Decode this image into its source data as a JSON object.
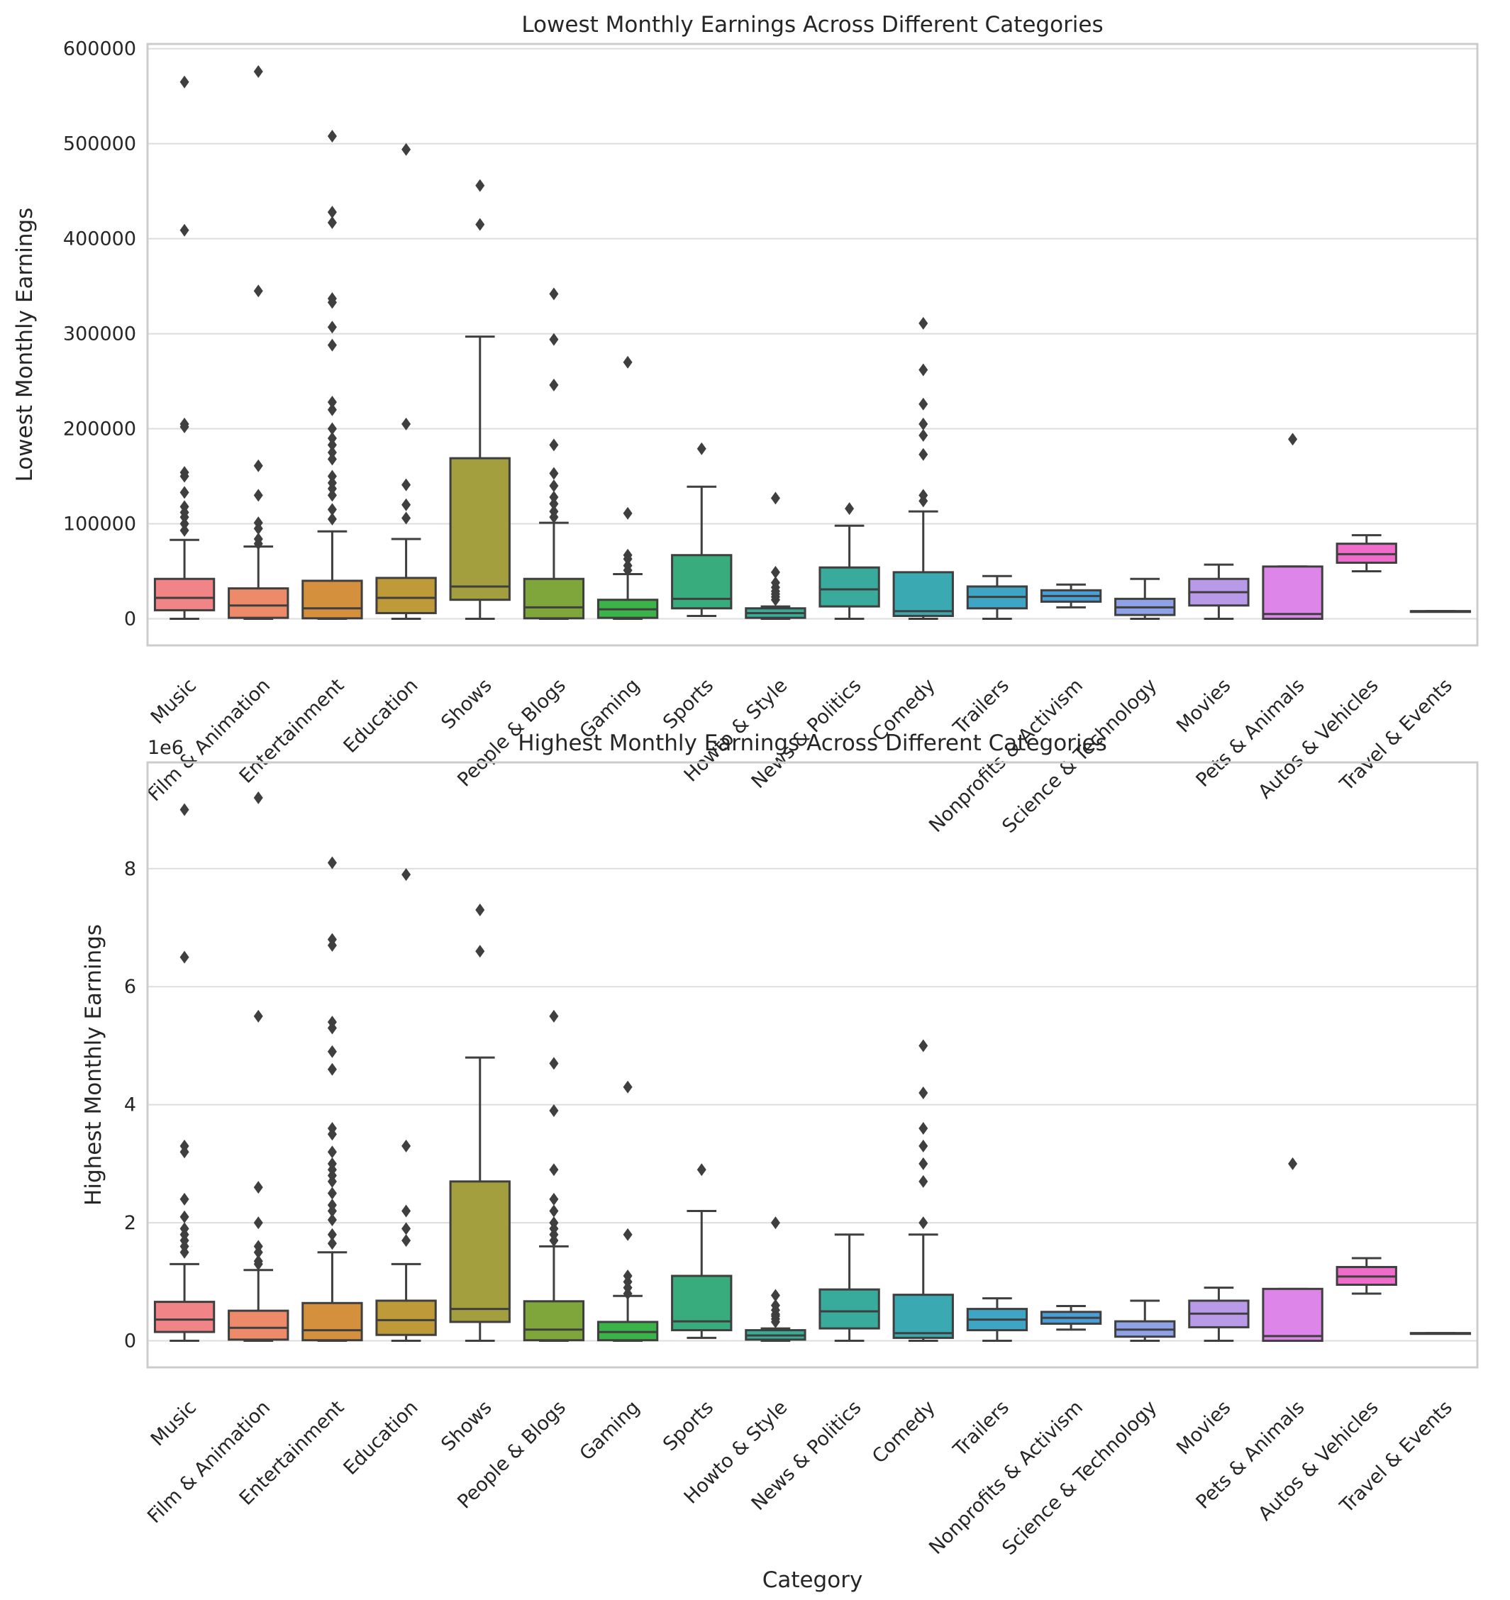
{
  "colors": {
    "palette": [
      "#f08487",
      "#ec8a6a",
      "#d5903d",
      "#bf9a38",
      "#a39e3e",
      "#7fa63b",
      "#3ab348",
      "#38ac7d",
      "#38ad96",
      "#38ab9c",
      "#3aa9b1",
      "#3ea6c4",
      "#4a9fd8",
      "#8fa2e8",
      "#b99ae8",
      "#dd85e8",
      "#f06ccb",
      "#f179ae"
    ],
    "box_edge": "#3f3f3f",
    "grid": "#dddddd",
    "frame": "#cccccc"
  },
  "chart_data": [
    {
      "type": "box",
      "title": "Lowest Monthly Earnings Across Different Categories",
      "xlabel": "",
      "ylabel": "Lowest Monthly Earnings",
      "offset_label": "",
      "ylim": [
        -28000,
        605000
      ],
      "yticks": [
        0,
        100000,
        200000,
        300000,
        400000,
        500000,
        600000
      ],
      "ytick_labels": [
        "0",
        "100000",
        "200000",
        "300000",
        "400000",
        "500000",
        "600000"
      ],
      "grid": true,
      "categories": [
        "Music",
        "Film & Animation",
        "Entertainment",
        "Education",
        "Shows",
        "People & Blogs",
        "Gaming",
        "Sports",
        "Howto & Style",
        "News & Politics",
        "Comedy",
        "Trailers",
        "Nonprofits & Activism",
        "Science & Technology",
        "Movies",
        "Pets & Animals",
        "Autos & Vehicles",
        "Travel & Events"
      ],
      "boxes": [
        {
          "min": 0,
          "q1": 9000,
          "median": 22000,
          "q3": 42000,
          "max": 83000,
          "outliers": [
            565000,
            409000,
            205000,
            202000,
            154000,
            150000,
            133000,
            118000,
            112000,
            107000,
            100000,
            93000
          ]
        },
        {
          "min": 0,
          "q1": 1000,
          "median": 14000,
          "q3": 32000,
          "max": 76000,
          "outliers": [
            576000,
            345000,
            161000,
            130000,
            101000,
            95000,
            84000,
            79000
          ]
        },
        {
          "min": 0,
          "q1": 500,
          "median": 11000,
          "q3": 40000,
          "max": 92000,
          "outliers": [
            508000,
            428000,
            417000,
            337000,
            333000,
            307000,
            288000,
            228000,
            220000,
            200000,
            190000,
            183000,
            175000,
            168000,
            150000,
            143000,
            137000,
            130000,
            115000,
            105000
          ]
        },
        {
          "min": 0,
          "q1": 6000,
          "median": 22000,
          "q3": 43000,
          "max": 84000,
          "outliers": [
            494000,
            205000,
            141000,
            120000,
            106000
          ]
        },
        {
          "min": 0,
          "q1": 20000,
          "median": 34000,
          "q3": 169000,
          "max": 297000,
          "outliers": [
            456000,
            415000
          ]
        },
        {
          "min": 0,
          "q1": 500,
          "median": 12000,
          "q3": 42000,
          "max": 101000,
          "outliers": [
            342000,
            294000,
            246000,
            183000,
            153000,
            140000,
            128000,
            121000,
            113000,
            107000
          ]
        },
        {
          "min": 0,
          "q1": 1000,
          "median": 10000,
          "q3": 20000,
          "max": 47000,
          "outliers": [
            270000,
            111000,
            67000,
            63000,
            56000,
            51000
          ]
        },
        {
          "min": 3000,
          "q1": 11000,
          "median": 21000,
          "q3": 67000,
          "max": 139000,
          "outliers": [
            179000
          ]
        },
        {
          "min": 0,
          "q1": 1000,
          "median": 6000,
          "q3": 11000,
          "max": 13000,
          "outliers": [
            127000,
            49000,
            38000,
            33000,
            29000,
            26000,
            23000,
            20000
          ]
        },
        {
          "min": 0,
          "q1": 13000,
          "median": 31000,
          "q3": 54000,
          "max": 98000,
          "outliers": [
            116000
          ]
        },
        {
          "min": 0,
          "q1": 3000,
          "median": 8000,
          "q3": 49000,
          "max": 113000,
          "outliers": [
            311000,
            262000,
            226000,
            205000,
            193000,
            173000,
            130000,
            124000
          ]
        },
        {
          "min": 0,
          "q1": 11000,
          "median": 23000,
          "q3": 34000,
          "max": 45000,
          "outliers": []
        },
        {
          "min": 12000,
          "q1": 18000,
          "median": 24000,
          "q3": 30000,
          "max": 36000,
          "outliers": []
        },
        {
          "min": 0,
          "q1": 4000,
          "median": 12000,
          "q3": 21000,
          "max": 42000,
          "outliers": []
        },
        {
          "min": 0,
          "q1": 14000,
          "median": 28000,
          "q3": 42000,
          "max": 57000,
          "outliers": []
        },
        {
          "min": 0,
          "q1": 0,
          "median": 5000,
          "q3": 55000,
          "max": 55000,
          "outliers": [
            189000
          ]
        },
        {
          "min": 50000,
          "q1": 59000,
          "median": 68000,
          "q3": 79000,
          "max": 88000,
          "outliers": []
        },
        {
          "min": 8000,
          "q1": 8000,
          "median": 8000,
          "q3": 8000,
          "max": 8000,
          "outliers": []
        }
      ]
    },
    {
      "type": "box",
      "title": "Highest Monthly Earnings Across Different Categories",
      "xlabel": "Category",
      "ylabel": "Highest Monthly Earnings",
      "offset_label": "1e6",
      "ylim": [
        -0.45,
        9.8
      ],
      "yticks": [
        0,
        2,
        4,
        6,
        8
      ],
      "ytick_labels": [
        "0",
        "2",
        "4",
        "6",
        "8"
      ],
      "grid": true,
      "categories": [
        "Music",
        "Film & Animation",
        "Entertainment",
        "Education",
        "Shows",
        "People & Blogs",
        "Gaming",
        "Sports",
        "Howto & Style",
        "News & Politics",
        "Comedy",
        "Trailers",
        "Nonprofits & Activism",
        "Science & Technology",
        "Movies",
        "Pets & Animals",
        "Autos & Vehicles",
        "Travel & Events"
      ],
      "boxes": [
        {
          "min": 0,
          "q1": 0.15,
          "median": 0.36,
          "q3": 0.66,
          "max": 1.3,
          "outliers": [
            9.0,
            6.5,
            3.3,
            3.2,
            2.4,
            2.1,
            1.9,
            1.8,
            1.7,
            1.6,
            1.5
          ]
        },
        {
          "min": 0,
          "q1": 0.02,
          "median": 0.22,
          "q3": 0.51,
          "max": 1.2,
          "outliers": [
            9.2,
            5.5,
            2.6,
            2.0,
            1.6,
            1.5,
            1.35,
            1.3
          ]
        },
        {
          "min": 0,
          "q1": 0.01,
          "median": 0.18,
          "q3": 0.64,
          "max": 1.5,
          "outliers": [
            8.1,
            6.8,
            6.7,
            5.4,
            5.3,
            4.9,
            4.6,
            3.6,
            3.5,
            3.2,
            3.0,
            2.9,
            2.8,
            2.7,
            2.5,
            2.3,
            2.2,
            2.05,
            1.8,
            1.65
          ]
        },
        {
          "min": 0,
          "q1": 0.1,
          "median": 0.35,
          "q3": 0.68,
          "max": 1.3,
          "outliers": [
            7.9,
            3.3,
            2.2,
            1.9,
            1.7
          ]
        },
        {
          "min": 0,
          "q1": 0.32,
          "median": 0.54,
          "q3": 2.7,
          "max": 4.8,
          "outliers": [
            7.3,
            6.6
          ]
        },
        {
          "min": 0,
          "q1": 0.01,
          "median": 0.19,
          "q3": 0.67,
          "max": 1.6,
          "outliers": [
            5.5,
            4.7,
            3.9,
            2.9,
            2.4,
            2.2,
            2.0,
            1.9,
            1.8,
            1.7
          ]
        },
        {
          "min": 0,
          "q1": 0.01,
          "median": 0.15,
          "q3": 0.32,
          "max": 0.76,
          "outliers": [
            4.3,
            1.8,
            1.1,
            1.0,
            0.9,
            0.8
          ]
        },
        {
          "min": 0.05,
          "q1": 0.18,
          "median": 0.33,
          "q3": 1.1,
          "max": 2.2,
          "outliers": [
            2.9
          ]
        },
        {
          "min": 0,
          "q1": 0.02,
          "median": 0.09,
          "q3": 0.18,
          "max": 0.21,
          "outliers": [
            2.0,
            0.77,
            0.6,
            0.52,
            0.45,
            0.42,
            0.37,
            0.32
          ]
        },
        {
          "min": 0,
          "q1": 0.21,
          "median": 0.5,
          "q3": 0.87,
          "max": 1.8,
          "outliers": []
        },
        {
          "min": 0,
          "q1": 0.05,
          "median": 0.13,
          "q3": 0.78,
          "max": 1.8,
          "outliers": [
            5.0,
            4.2,
            3.6,
            3.3,
            3.0,
            2.7,
            2.0
          ]
        },
        {
          "min": 0,
          "q1": 0.18,
          "median": 0.36,
          "q3": 0.54,
          "max": 0.72,
          "outliers": []
        },
        {
          "min": 0.19,
          "q1": 0.29,
          "median": 0.39,
          "q3": 0.49,
          "max": 0.59,
          "outliers": []
        },
        {
          "min": 0,
          "q1": 0.07,
          "median": 0.19,
          "q3": 0.33,
          "max": 0.68,
          "outliers": []
        },
        {
          "min": 0,
          "q1": 0.23,
          "median": 0.46,
          "q3": 0.68,
          "max": 0.9,
          "outliers": []
        },
        {
          "min": 0,
          "q1": 0,
          "median": 0.08,
          "q3": 0.88,
          "max": 0.88,
          "outliers": [
            3.0
          ]
        },
        {
          "min": 0.8,
          "q1": 0.95,
          "median": 1.09,
          "q3": 1.25,
          "max": 1.4,
          "outliers": []
        },
        {
          "min": 0.13,
          "q1": 0.13,
          "median": 0.13,
          "q3": 0.13,
          "max": 0.13,
          "outliers": []
        }
      ]
    }
  ]
}
